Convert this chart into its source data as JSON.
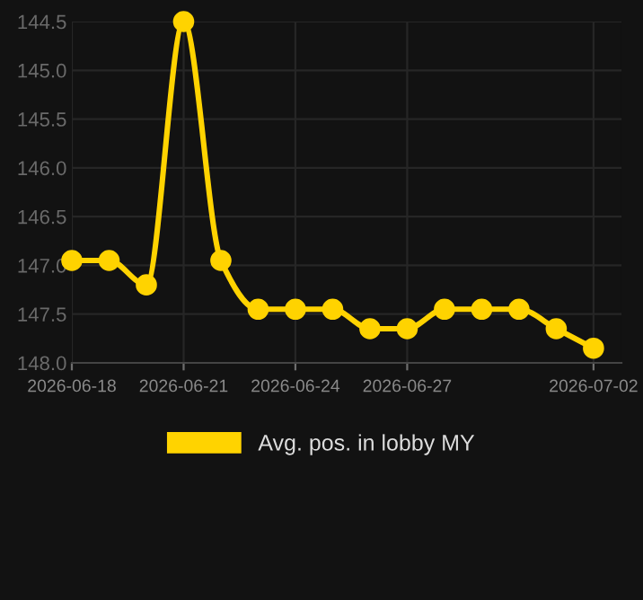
{
  "chart_data": {
    "type": "line",
    "x": [
      "2026-06-18",
      "2026-06-19",
      "2026-06-20",
      "2026-06-21",
      "2026-06-22",
      "2026-06-23",
      "2026-06-24",
      "2026-06-25",
      "2026-06-26",
      "2026-06-27",
      "2026-06-28",
      "2026-06-29",
      "2026-06-30",
      "2026-07-01",
      "2026-07-02"
    ],
    "series": [
      {
        "name": "Avg. pos. in lobby MY",
        "color": "#ffd300",
        "values": [
          146.95,
          146.95,
          147.2,
          144.5,
          146.95,
          147.45,
          147.45,
          147.45,
          147.65,
          147.65,
          147.45,
          147.45,
          147.45,
          147.65,
          147.85
        ]
      }
    ],
    "xlim": [
      "2026-06-18",
      "2026-07-02T18:00"
    ],
    "xticks": [
      {
        "value": "2026-06-18",
        "label": "2026-06-18"
      },
      {
        "value": "2026-06-21",
        "label": "2026-06-21"
      },
      {
        "value": "2026-06-24",
        "label": "2026-06-24"
      },
      {
        "value": "2026-06-27",
        "label": "2026-06-27"
      },
      {
        "value": "2026-07-02",
        "label": "2026-07-02"
      }
    ],
    "ylim": [
      148.0,
      144.5
    ],
    "yticks": [
      144.5,
      {
        "value": 145,
        "label": "145.0"
      },
      145.5,
      {
        "value": 146,
        "label": "146.0"
      },
      146.5,
      {
        "value": 147,
        "label": "147.0"
      },
      147.5,
      {
        "value": 148,
        "label": "148.0"
      }
    ],
    "grid": true,
    "legend": "bottom",
    "marker": "circle",
    "line_style": "solid"
  }
}
